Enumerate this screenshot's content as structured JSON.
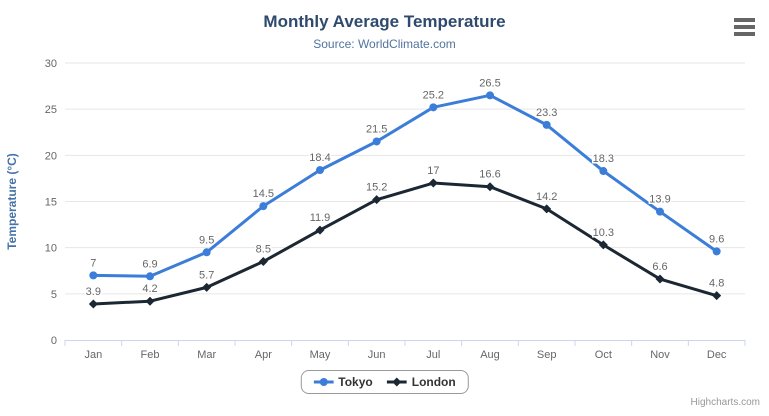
{
  "chart_data": {
    "type": "line",
    "title": "Monthly Average Temperature",
    "subtitle": "Source: WorldClimate.com",
    "categories": [
      "Jan",
      "Feb",
      "Mar",
      "Apr",
      "May",
      "Jun",
      "Jul",
      "Aug",
      "Sep",
      "Oct",
      "Nov",
      "Dec"
    ],
    "xlabel": "",
    "ylabel": "Temperature (°C)",
    "ylim": [
      0,
      30
    ],
    "yticks": [
      0,
      5,
      10,
      15,
      20,
      25,
      30
    ],
    "grid": true,
    "data_labels": true,
    "legend_position": "bottom",
    "series": [
      {
        "name": "Tokyo",
        "marker": "circle",
        "color": "#3B7DD8",
        "values": [
          7,
          6.9,
          9.5,
          14.5,
          18.4,
          21.5,
          25.2,
          26.5,
          23.3,
          18.3,
          13.9,
          9.6
        ]
      },
      {
        "name": "London",
        "marker": "diamond",
        "color": "#1B2733",
        "values": [
          3.9,
          4.2,
          5.7,
          8.5,
          11.9,
          15.2,
          17,
          16.6,
          14.2,
          10.3,
          6.6,
          4.8
        ]
      }
    ]
  },
  "credits": "Highcharts.com",
  "menu_icon": "hamburger-icon",
  "theme": {
    "background": "#FFFFFF",
    "title_color": "#2E4A6E",
    "subtitle_color": "#50749E",
    "axis_label_color": "#666666",
    "axis_title_color": "#4572A7",
    "data_label_color": "#666666",
    "grid_color": "#E6E6E6",
    "axis_line_color": "#CCD6EB",
    "legend_text_color": "#333333",
    "legend_border_color": "#999999",
    "credits_color": "#999999",
    "menu_icon_color": "#666666"
  }
}
